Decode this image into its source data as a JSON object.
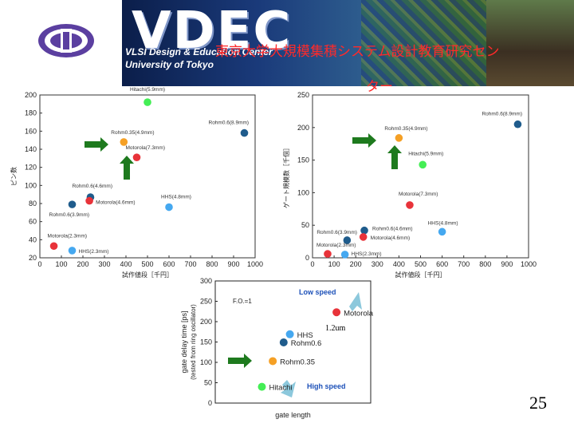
{
  "header": {
    "logo_text": "VDEC",
    "subtitle_line1": "VLSI Design & Education Center",
    "subtitle_line2": "University of Tokyo",
    "title_line1": "東京大学大規模集積システム設計教育研究セン",
    "title_line2": "ター"
  },
  "slide_number": "25",
  "colors": {
    "green": "#44ee55",
    "orange": "#f5a025",
    "red": "#e8333a",
    "darkblue": "#1f5c8c",
    "lightblue": "#45a8f0",
    "arrow": "#1e7a1e",
    "hint_arrow": "#8cc8dc"
  },
  "chart_data": [
    {
      "type": "scatter",
      "xlabel": "試作値段［千円］",
      "ylabel": "ピン数",
      "xlim": [
        0,
        1000
      ],
      "ylim": [
        20,
        200
      ],
      "xticks": [
        0,
        100,
        200,
        300,
        400,
        500,
        600,
        700,
        800,
        900,
        1000
      ],
      "yticks": [
        20,
        40,
        60,
        80,
        100,
        120,
        140,
        160,
        180,
        200
      ],
      "points": [
        {
          "label": "Hitachi(5.9mm)",
          "x": 500,
          "y": 192,
          "color": "green",
          "lx": 0,
          "ly": -14,
          "anchor": "middle"
        },
        {
          "label": "Rohm0.35(4.9mm)",
          "x": 390,
          "y": 148,
          "color": "orange",
          "lx": -16,
          "ly": -10,
          "anchor": "start"
        },
        {
          "label": "Motorola(7.3mm)",
          "x": 450,
          "y": 131,
          "color": "red",
          "lx": -14,
          "ly": -10,
          "anchor": "start"
        },
        {
          "label": "Rohm0.6(8.9mm)",
          "x": 950,
          "y": 158,
          "color": "darkblue",
          "lx": -45,
          "ly": -11,
          "anchor": "start"
        },
        {
          "label": "Rohm0.6(4.6mm)",
          "x": 235,
          "y": 87,
          "color": "darkblue",
          "lx": -23,
          "ly": -12,
          "anchor": "start"
        },
        {
          "label": "Motorola(4.6mm)",
          "x": 230,
          "y": 83,
          "color": "red",
          "lx": 8,
          "ly": 4,
          "anchor": "start"
        },
        {
          "label": "Rohm0.6(3.9mm)",
          "x": 150,
          "y": 79,
          "color": "darkblue",
          "lx": -29,
          "ly": 15,
          "anchor": "start"
        },
        {
          "label": "HHS(4.8mm)",
          "x": 600,
          "y": 76,
          "color": "lightblue",
          "lx": -10,
          "ly": -11,
          "anchor": "start"
        },
        {
          "label": "Motorola(2.3mm)",
          "x": 65,
          "y": 33,
          "color": "red",
          "lx": -8,
          "ly": -11,
          "anchor": "start"
        },
        {
          "label": "HHS(2.3mm)",
          "x": 150,
          "y": 28,
          "color": "lightblue",
          "lx": 8,
          "ly": 3,
          "anchor": "start"
        }
      ]
    },
    {
      "type": "scatter",
      "xlabel": "試作値段［千円］",
      "ylabel": "ゲート規模数［千個］",
      "xlim": [
        0,
        1000
      ],
      "ylim": [
        0,
        250
      ],
      "xticks": [
        0,
        100,
        200,
        300,
        400,
        500,
        600,
        700,
        800,
        900,
        1000
      ],
      "yticks": [
        0,
        50,
        100,
        150,
        200,
        250
      ],
      "points": [
        {
          "label": "Rohm0.6(8.9mm)",
          "x": 950,
          "y": 205,
          "color": "darkblue",
          "lx": -45,
          "ly": -11,
          "anchor": "start"
        },
        {
          "label": "Rohm0.35(4.9mm)",
          "x": 400,
          "y": 184,
          "color": "orange",
          "lx": -18,
          "ly": -10,
          "anchor": "start"
        },
        {
          "label": "Hitachi(5.9mm)",
          "x": 510,
          "y": 143,
          "color": "green",
          "lx": -18,
          "ly": -12,
          "anchor": "start"
        },
        {
          "label": "Motorola(7.3mm)",
          "x": 450,
          "y": 81,
          "color": "red",
          "lx": -14,
          "ly": -12,
          "anchor": "start"
        },
        {
          "label": "HHS(4.8mm)",
          "x": 600,
          "y": 40,
          "color": "lightblue",
          "lx": -18,
          "ly": -9,
          "anchor": "start"
        },
        {
          "label": "Rohm0.6(4.6mm)",
          "x": 240,
          "y": 42,
          "color": "darkblue",
          "lx": 10,
          "ly": 0,
          "anchor": "start"
        },
        {
          "label": "Motorola(4.6mm)",
          "x": 235,
          "y": 32,
          "color": "red",
          "lx": 9,
          "ly": 3,
          "anchor": "start"
        },
        {
          "label": "Rohm0.6(3.9mm)",
          "x": 160,
          "y": 27,
          "color": "darkblue",
          "lx": -38,
          "ly": -8,
          "anchor": "start"
        },
        {
          "label": "Motorola(2.3mm)",
          "x": 70,
          "y": 6,
          "color": "red",
          "lx": -14,
          "ly": -9,
          "anchor": "start"
        },
        {
          "label": "HHS(2.3mm)",
          "x": 150,
          "y": 5,
          "color": "lightblue",
          "lx": 8,
          "ly": 1,
          "anchor": "start"
        }
      ]
    },
    {
      "type": "scatter",
      "xlabel": "gate length",
      "ylabel": "gate delay time [ps]",
      "ylabel2": "(tested from ring oscillator)",
      "ylim": [
        0,
        300
      ],
      "yticks": [
        0,
        50,
        100,
        150,
        200,
        250,
        300
      ],
      "annotation": "F.O.=1",
      "low_speed": "Low speed",
      "high_speed": "High speed",
      "note": "1.2um",
      "points": [
        {
          "label": "Motorola",
          "x": 0.78,
          "y": 223,
          "color": "red"
        },
        {
          "label": "HHS",
          "x": 0.48,
          "y": 169,
          "color": "lightblue"
        },
        {
          "label": "Rohm0.6",
          "x": 0.44,
          "y": 149,
          "color": "darkblue"
        },
        {
          "label": "Rohm0.35",
          "x": 0.37,
          "y": 103,
          "color": "orange"
        },
        {
          "label": "Hitachi",
          "x": 0.3,
          "y": 40,
          "color": "green"
        }
      ]
    }
  ]
}
